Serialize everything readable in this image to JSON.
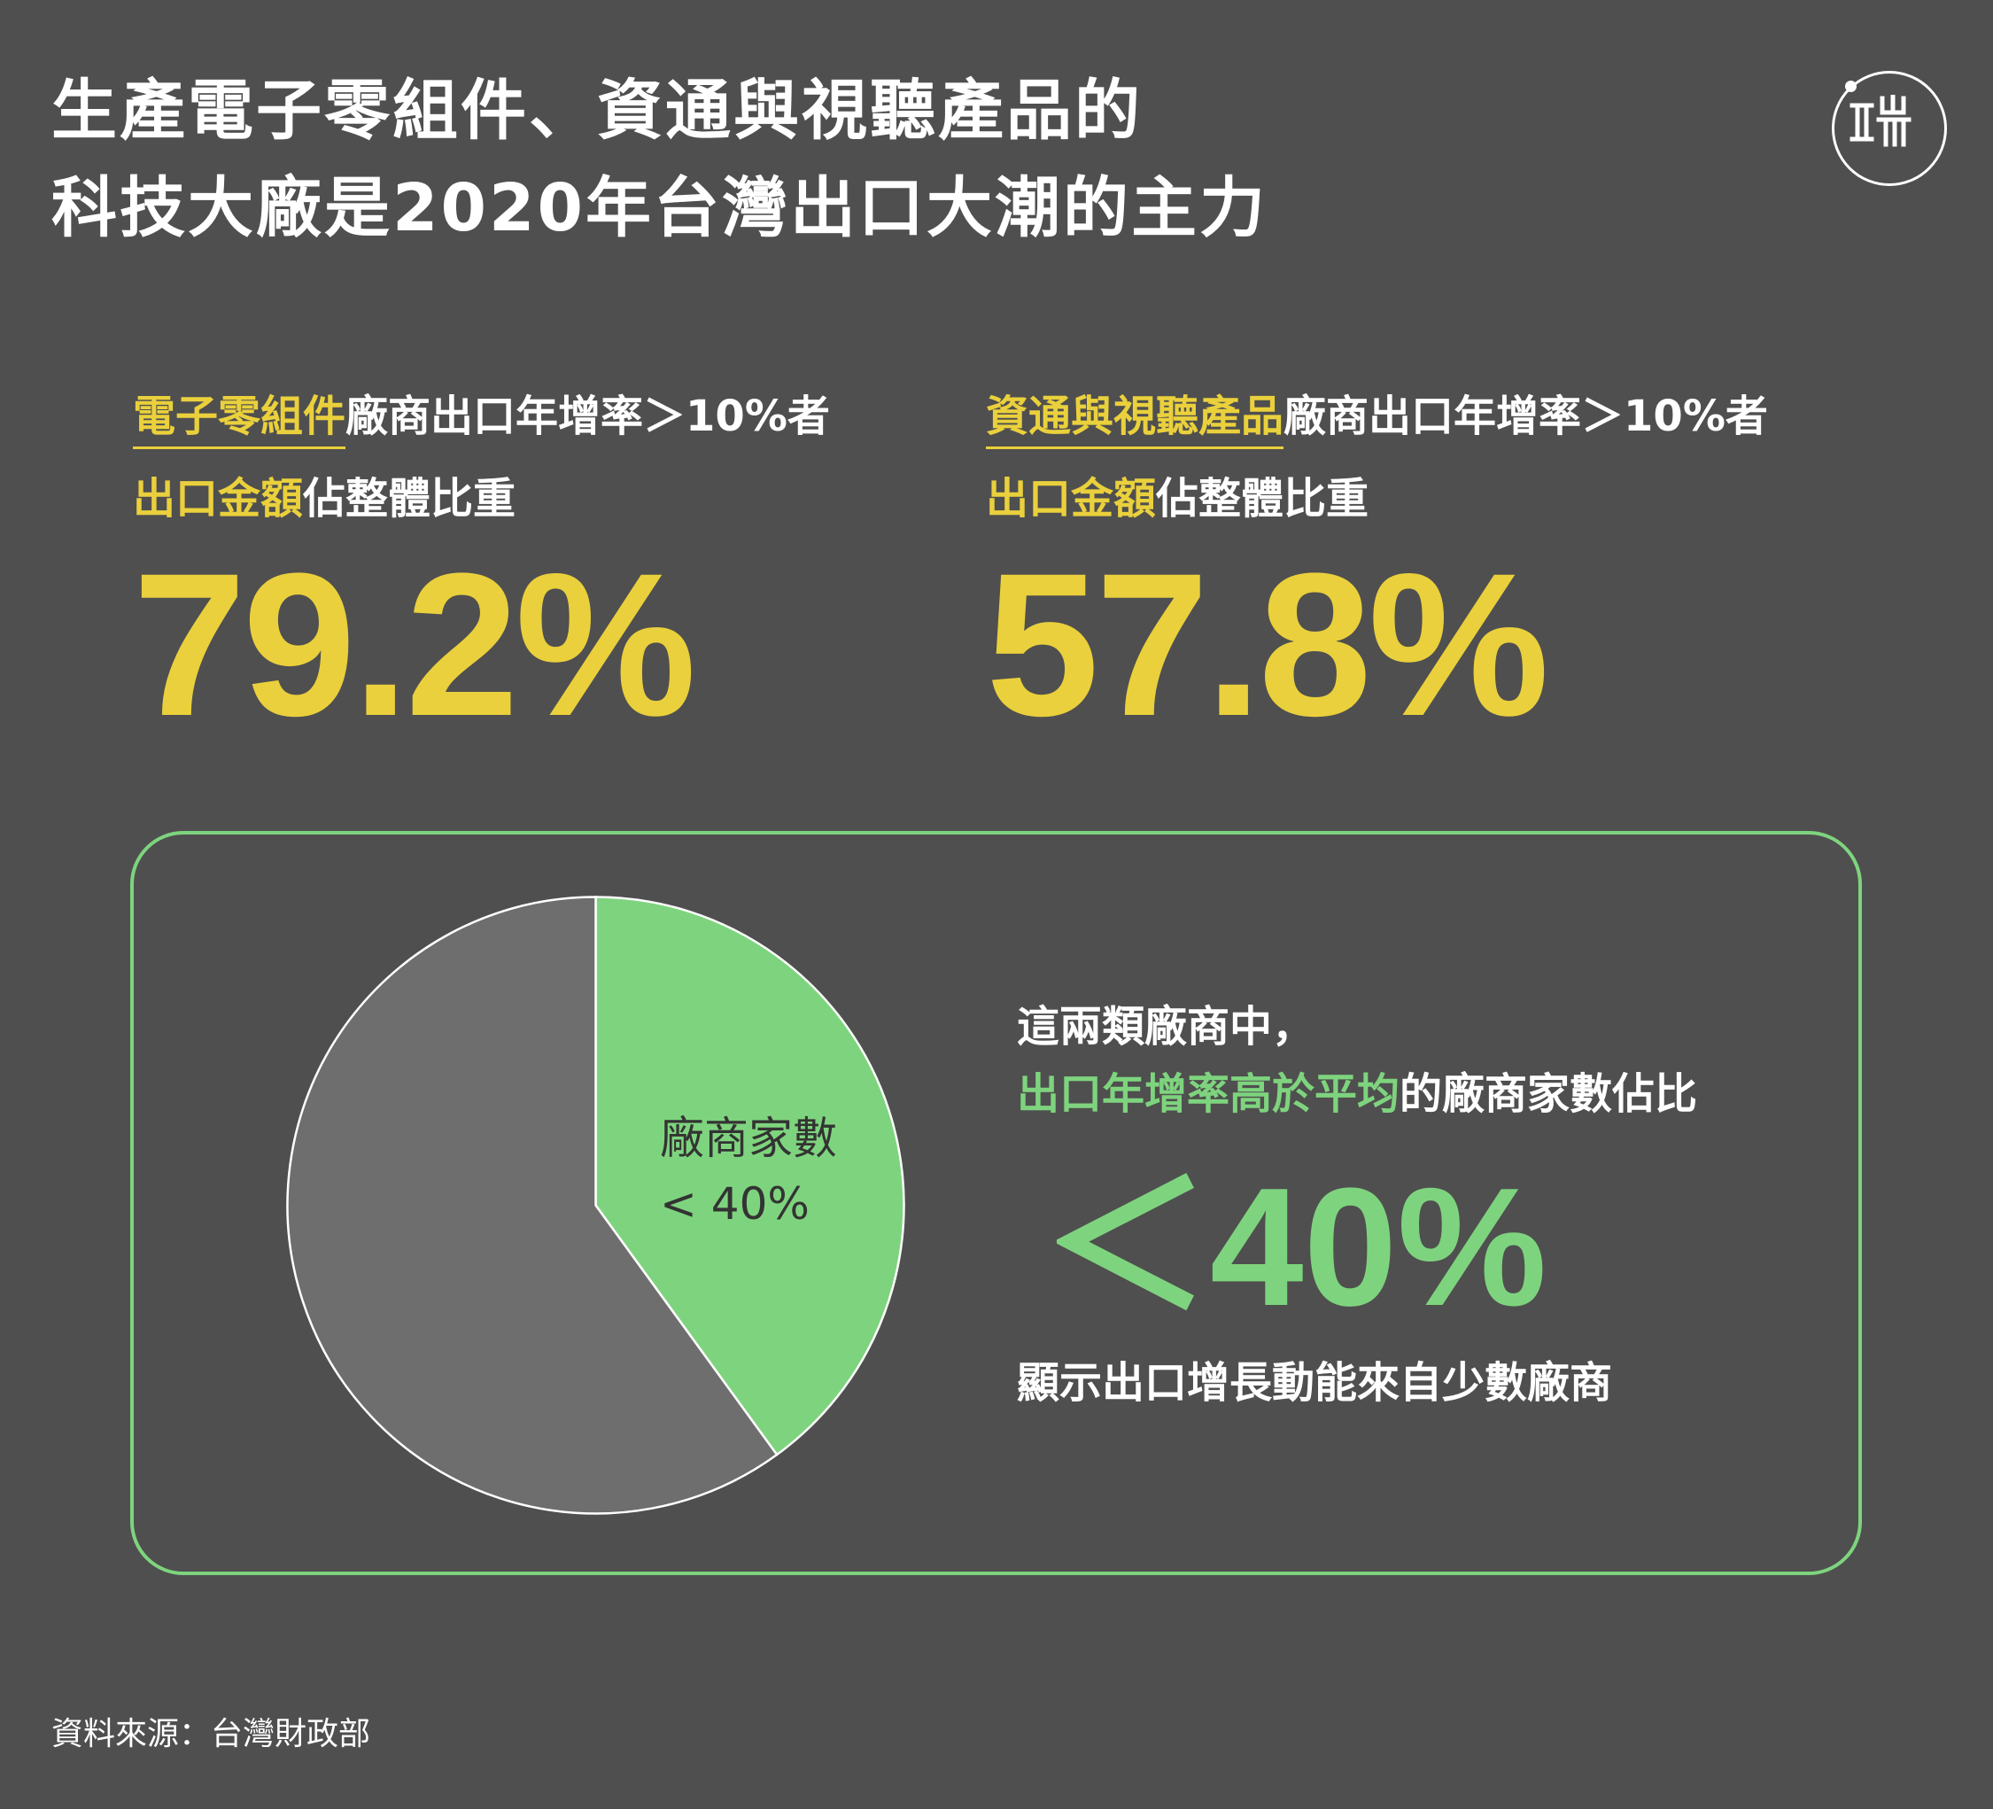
{
  "title": {
    "line1": "生產電子零組件、資通與視聽產品的",
    "line2": "科技大廠是2020年台灣出口大潮的主力"
  },
  "logo": {
    "text": "端",
    "icon": "theinitium-logo-icon"
  },
  "stats": [
    {
      "highlight": "電子零組件",
      "rest": "廠商出口年增率＞10%者",
      "line2_highlight": "出口金額",
      "line2_rest": "佔整體比重",
      "value": "79.2%"
    },
    {
      "highlight": "資通與視聽產品",
      "rest": "廠商出口年增率＞10%者",
      "line2_highlight": "出口金額",
      "line2_rest": "佔整體比重",
      "value": "57.8%"
    }
  ],
  "panel": {
    "line1": "這兩類廠商中，",
    "line2_highlight": "出口年增率高於平均",
    "line2_rest": "的廠商家數佔比",
    "big_value": "＜40%",
    "line3": "顯示出口增長動能來自少數廠商"
  },
  "chart_data": {
    "type": "pie",
    "slices": [
      {
        "label": "廠商家數\n< 40%",
        "value": 40,
        "color": "#7ed47e"
      },
      {
        "value": 60,
        "color": "#6e6e6e"
      }
    ],
    "slice_label_line1": "廠商家數",
    "slice_label_line2": "< 40%"
  },
  "source": "資料來源：台灣財政部",
  "colors": {
    "background": "#4f4f4f",
    "yellow": "#ead03c",
    "green": "#7ed47e",
    "grey_slice": "#6e6e6e"
  }
}
